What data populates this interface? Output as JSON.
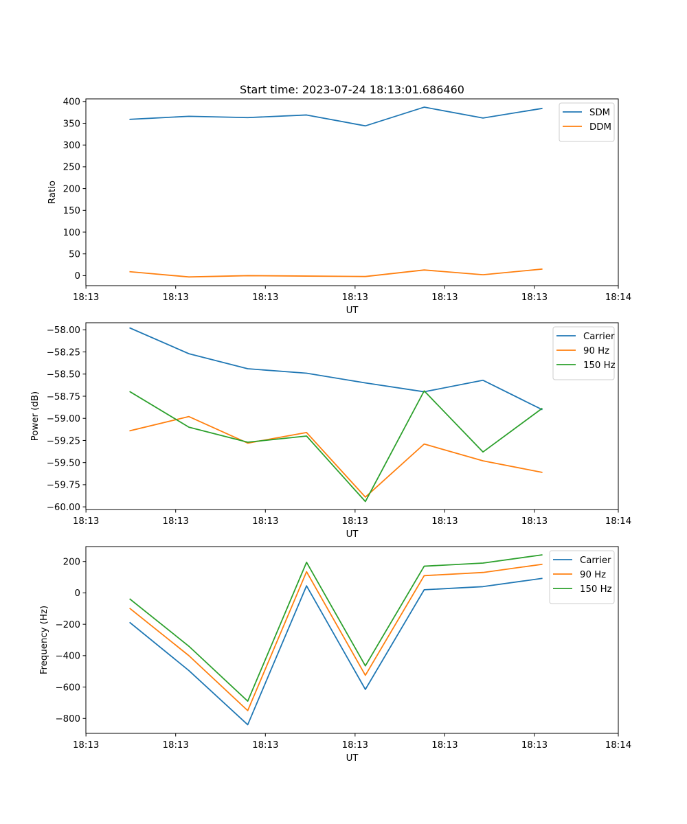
{
  "figure_title": "Start time: 2023-07-24 18:13:01.686460",
  "chart_data": [
    {
      "type": "line",
      "title": "Start time: 2023-07-24 18:13:01.686460",
      "xlabel": "UT",
      "ylabel": "Ratio",
      "x": [
        1,
        2,
        3,
        4,
        5,
        6,
        7,
        8
      ],
      "xlim": [
        0.2484,
        9.3
      ],
      "xticks": [
        0.25,
        1.775,
        3.3,
        4.825,
        6.35,
        7.875,
        9.3
      ],
      "xtick_labels": [
        "18:13",
        "18:13",
        "18:13",
        "18:13",
        "18:13",
        "18:13",
        "18:14"
      ],
      "ylim": [
        -23,
        406
      ],
      "yticks": [
        0,
        50,
        100,
        150,
        200,
        250,
        300,
        350,
        400
      ],
      "ytick_labels": [
        "0",
        "50",
        "100",
        "150",
        "200",
        "250",
        "300",
        "350",
        "400"
      ],
      "legend_position": "top-right",
      "series": [
        {
          "name": "SDM",
          "color": "#1f77b4",
          "values": [
            359,
            366,
            363,
            369,
            344,
            387,
            362,
            384
          ]
        },
        {
          "name": "DDM",
          "color": "#ff7f0e",
          "values": [
            9,
            -3,
            0,
            -1,
            -2,
            13,
            2,
            15
          ]
        }
      ]
    },
    {
      "type": "line",
      "title": "",
      "xlabel": "UT",
      "ylabel": "Power (dB)",
      "x": [
        1,
        2,
        3,
        4,
        5,
        6,
        7,
        8
      ],
      "xlim": [
        0.2484,
        9.3
      ],
      "xticks": [
        0.25,
        1.775,
        3.3,
        4.825,
        6.35,
        7.875,
        9.3
      ],
      "xtick_labels": [
        "18:13",
        "18:13",
        "18:13",
        "18:13",
        "18:13",
        "18:13",
        "18:14"
      ],
      "ylim": [
        -60.03,
        -57.92
      ],
      "yticks": [
        -60.0,
        -59.75,
        -59.5,
        -59.25,
        -59.0,
        -58.75,
        -58.5,
        -58.25,
        -58.0
      ],
      "ytick_labels": [
        "−60.00",
        "−59.75",
        "−59.50",
        "−59.25",
        "−59.00",
        "−58.75",
        "−58.50",
        "−58.25",
        "−58.00"
      ],
      "legend_position": "top-right",
      "series": [
        {
          "name": "Carrier",
          "color": "#1f77b4",
          "values": [
            -57.98,
            -58.27,
            -58.44,
            -58.49,
            -58.6,
            -58.7,
            -58.57,
            -58.9
          ]
        },
        {
          "name": "90 Hz",
          "color": "#ff7f0e",
          "values": [
            -59.14,
            -58.98,
            -59.28,
            -59.16,
            -59.89,
            -59.29,
            -59.48,
            -59.61
          ]
        },
        {
          "name": "150 Hz",
          "color": "#2ca02c",
          "values": [
            -58.7,
            -59.1,
            -59.27,
            -59.2,
            -59.94,
            -58.69,
            -59.38,
            -58.89
          ]
        }
      ]
    },
    {
      "type": "line",
      "title": "",
      "xlabel": "UT",
      "ylabel": "Frequency (Hz)",
      "x": [
        1,
        2,
        3,
        4,
        5,
        6,
        7,
        8
      ],
      "xlim": [
        0.2484,
        9.3
      ],
      "xticks": [
        0.25,
        1.775,
        3.3,
        4.825,
        6.35,
        7.875,
        9.3
      ],
      "xtick_labels": [
        "18:13",
        "18:13",
        "18:13",
        "18:13",
        "18:13",
        "18:13",
        "18:14"
      ],
      "ylim": [
        -895,
        295
      ],
      "yticks": [
        -800,
        -600,
        -400,
        -200,
        0,
        200
      ],
      "ytick_labels": [
        "−800",
        "−600",
        "−400",
        "−200",
        "0",
        "200"
      ],
      "legend_position": "top-right",
      "series": [
        {
          "name": "Carrier",
          "color": "#1f77b4",
          "values": [
            -190,
            -495,
            -840,
            45,
            -615,
            20,
            40,
            92
          ]
        },
        {
          "name": "90 Hz",
          "color": "#ff7f0e",
          "values": [
            -100,
            -400,
            -750,
            135,
            -525,
            110,
            130,
            182
          ]
        },
        {
          "name": "150 Hz",
          "color": "#2ca02c",
          "values": [
            -40,
            -340,
            -690,
            195,
            -465,
            170,
            190,
            242
          ]
        }
      ]
    }
  ]
}
